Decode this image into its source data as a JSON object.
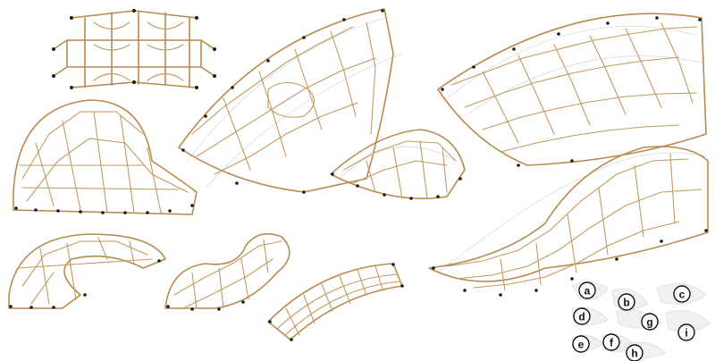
{
  "legend": {
    "labels": [
      "a",
      "b",
      "c",
      "d",
      "g",
      "i",
      "e",
      "f",
      "h"
    ]
  },
  "colors": {
    "rod": "#b98a4e",
    "node": "#1b1b1b",
    "shadow": "#d9dde2",
    "background": "#ffffff"
  }
}
